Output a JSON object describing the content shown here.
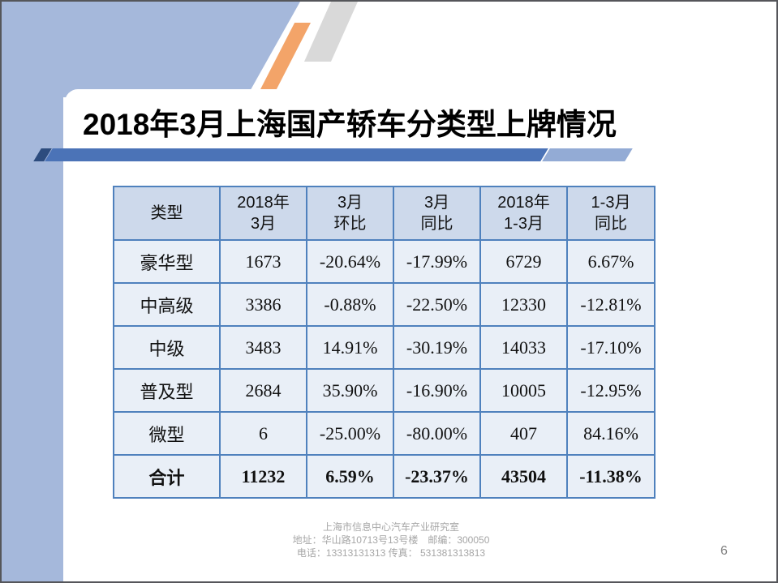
{
  "slide": {
    "title": "2018年3月上海国产轿车分类型上牌情况",
    "page_number": "6"
  },
  "table": {
    "columns": [
      "类型",
      "2018年\n3月",
      "3月\n环比",
      "3月\n同比",
      "2018年\n1-3月",
      "1-3月\n同比"
    ],
    "rows": [
      {
        "label": "豪华型",
        "values": [
          "1673",
          "-20.64%",
          "-17.99%",
          "6729",
          "6.67%"
        ],
        "bold": false
      },
      {
        "label": "中高级",
        "values": [
          "3386",
          "-0.88%",
          "-22.50%",
          "12330",
          "-12.81%"
        ],
        "bold": false
      },
      {
        "label": "中级",
        "values": [
          "3483",
          "14.91%",
          "-30.19%",
          "14033",
          "-17.10%"
        ],
        "bold": false
      },
      {
        "label": "普及型",
        "values": [
          "2684",
          "35.90%",
          "-16.90%",
          "10005",
          "-12.95%"
        ],
        "bold": false
      },
      {
        "label": "微型",
        "values": [
          "6",
          "-25.00%",
          "-80.00%",
          "407",
          "84.16%"
        ],
        "bold": false
      },
      {
        "label": "合计",
        "values": [
          "11232",
          "6.59%",
          "-23.37%",
          "43504",
          "-11.38%"
        ],
        "bold": true
      }
    ]
  },
  "footer": {
    "line1": "上海市信息中心汽车产业研究室",
    "line2": "地址：华山路10713号13号楼　邮编：300050",
    "line3": "电话：13313131313 传真： 531381313813"
  },
  "colors": {
    "accent_blue": "#4f81bd",
    "bar_blue": "#4b73b7",
    "bar_light_blue": "#93abd5",
    "bar_dark_blue": "#2d4c7e",
    "decor_blue": "#a5b8db",
    "decor_orange": "#f3a469",
    "decor_gray": "#d9d9d9",
    "table_header_bg": "#cdd9eb",
    "table_cell_bg": "#e9eff7",
    "footer_gray": "#a6a6a6"
  }
}
